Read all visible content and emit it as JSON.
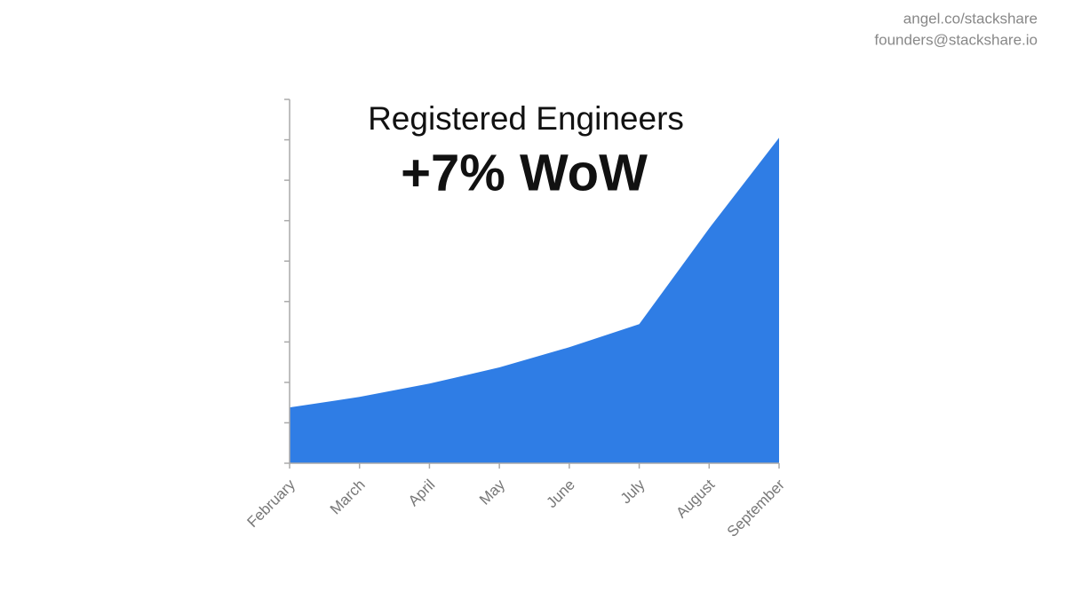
{
  "contact": [
    "angel.co/stackshare",
    "founders@stackshare.io"
  ],
  "chart_data": {
    "type": "area",
    "title": "Registered Engineers",
    "subtitle": "+7% WoW",
    "categories": [
      "February",
      "March",
      "April",
      "May",
      "June",
      "July",
      "August",
      "September"
    ],
    "values": [
      1.38,
      1.64,
      1.97,
      2.37,
      2.87,
      3.44,
      5.81,
      8.05
    ],
    "color": "#2f7de5",
    "ylim": [
      0,
      9
    ],
    "yticks": [
      0,
      1,
      2,
      3,
      4,
      5,
      6,
      7,
      8,
      9
    ]
  }
}
